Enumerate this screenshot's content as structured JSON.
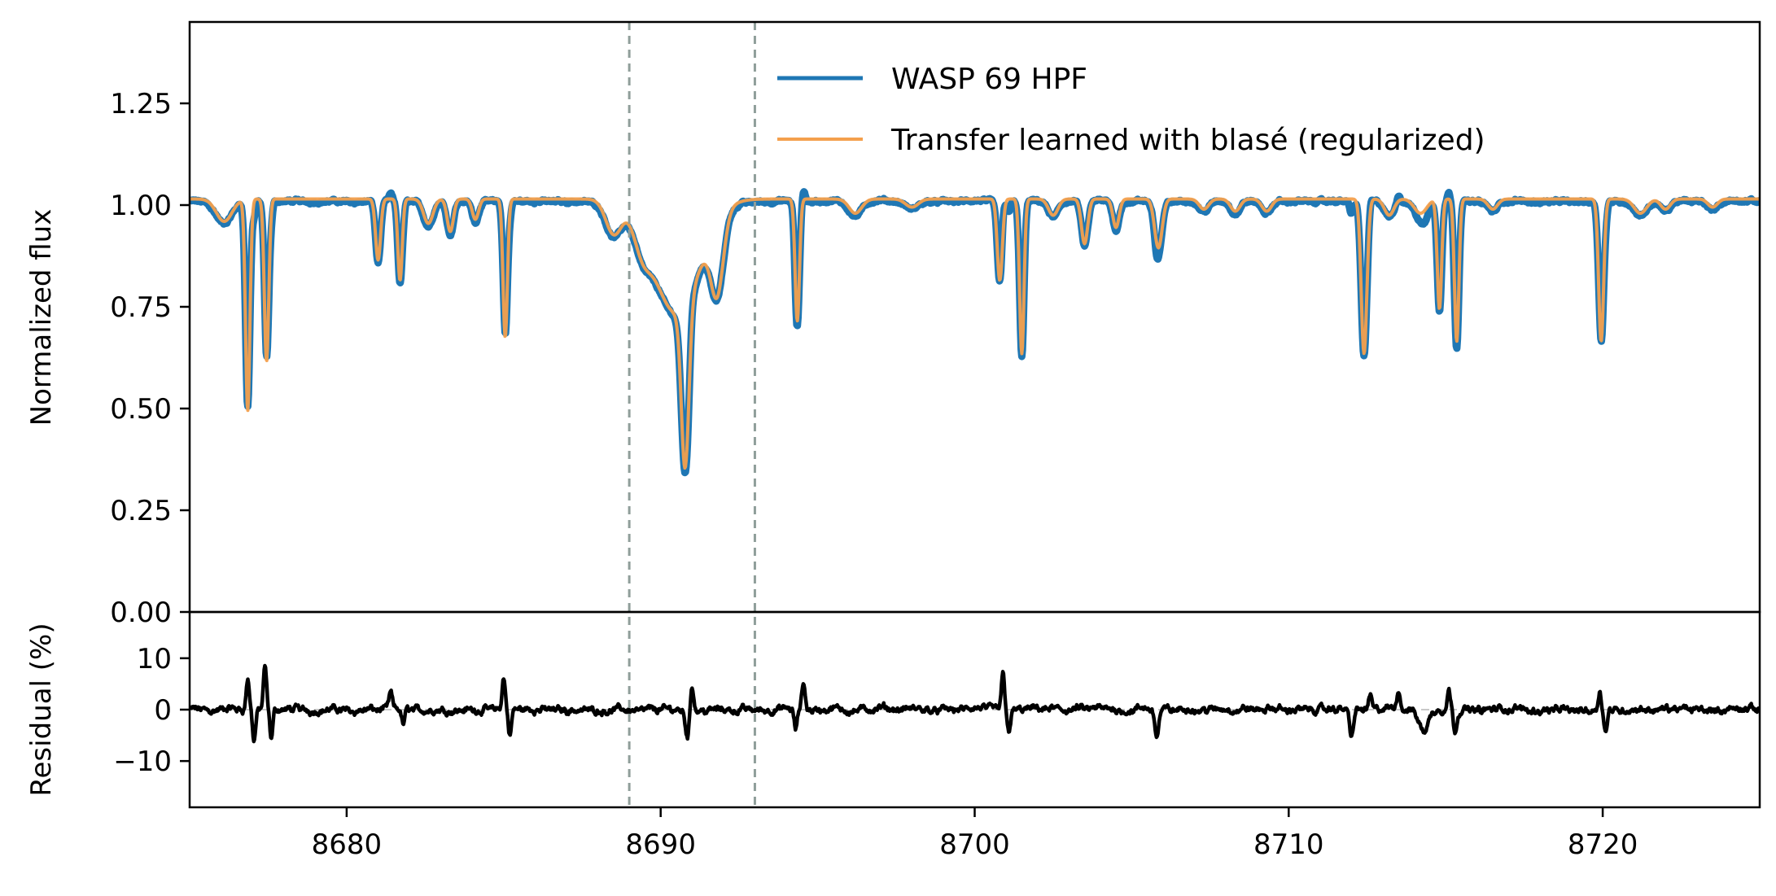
{
  "chart_data": {
    "type": "line",
    "xlim": [
      8675,
      8725
    ],
    "x_ticks": [
      "8680",
      "8690",
      "8700",
      "8710",
      "8720"
    ],
    "vertical_lines": [
      8689,
      8693
    ],
    "colors": {
      "observed": "#1f77b4",
      "model": "#f4a04d",
      "residual": "#000000",
      "zero_line": "#c8c8c8",
      "vertical_line": "#8f9e9a"
    },
    "panels": [
      {
        "id": "flux",
        "ylabel": "Normalized flux",
        "ylim": [
          0,
          1.45
        ],
        "y_ticks": [
          "0.00",
          "0.25",
          "0.50",
          "0.75",
          "1.00",
          "1.25"
        ],
        "legend_position": "top-right",
        "series": [
          {
            "name": "WASP 69 HPF",
            "role": "observed"
          },
          {
            "name": "Transfer learned with blasé (regularized)",
            "role": "model"
          }
        ],
        "continuum": 1.015,
        "absorption_lines": [
          {
            "center": 8676.1,
            "depth": 0.055,
            "width": 0.25
          },
          {
            "center": 8676.85,
            "depth": 0.52,
            "width": 0.07
          },
          {
            "center": 8677.45,
            "depth": 0.4,
            "width": 0.07
          },
          {
            "center": 8681.0,
            "depth": 0.15,
            "width": 0.08
          },
          {
            "center": 8681.7,
            "depth": 0.2,
            "width": 0.07
          },
          {
            "center": 8682.6,
            "depth": 0.06,
            "width": 0.15
          },
          {
            "center": 8683.3,
            "depth": 0.08,
            "width": 0.1
          },
          {
            "center": 8684.1,
            "depth": 0.05,
            "width": 0.1
          },
          {
            "center": 8685.05,
            "depth": 0.34,
            "width": 0.07
          },
          {
            "center": 8688.5,
            "depth": 0.08,
            "width": 0.25
          },
          {
            "center": 8689.4,
            "depth": 0.06,
            "width": 0.25
          },
          {
            "center": 8690.5,
            "depth": 0.28,
            "width": 0.75
          },
          {
            "center": 8690.78,
            "depth": 0.4,
            "width": 0.12
          },
          {
            "center": 8691.8,
            "depth": 0.18,
            "width": 0.2
          },
          {
            "center": 8694.35,
            "depth": 0.3,
            "width": 0.07
          },
          {
            "center": 8696.2,
            "depth": 0.035,
            "width": 0.2
          },
          {
            "center": 8698.0,
            "depth": 0.02,
            "width": 0.2
          },
          {
            "center": 8700.8,
            "depth": 0.2,
            "width": 0.08
          },
          {
            "center": 8701.5,
            "depth": 0.38,
            "width": 0.07
          },
          {
            "center": 8702.5,
            "depth": 0.04,
            "width": 0.15
          },
          {
            "center": 8703.5,
            "depth": 0.11,
            "width": 0.1
          },
          {
            "center": 8704.5,
            "depth": 0.07,
            "width": 0.1
          },
          {
            "center": 8705.85,
            "depth": 0.12,
            "width": 0.12
          },
          {
            "center": 8707.3,
            "depth": 0.025,
            "width": 0.15
          },
          {
            "center": 8708.3,
            "depth": 0.03,
            "width": 0.15
          },
          {
            "center": 8709.3,
            "depth": 0.03,
            "width": 0.15
          },
          {
            "center": 8712.4,
            "depth": 0.38,
            "width": 0.09
          },
          {
            "center": 8713.2,
            "depth": 0.04,
            "width": 0.15
          },
          {
            "center": 8714.2,
            "depth": 0.035,
            "width": 0.2
          },
          {
            "center": 8714.8,
            "depth": 0.27,
            "width": 0.07
          },
          {
            "center": 8715.35,
            "depth": 0.35,
            "width": 0.07
          },
          {
            "center": 8716.5,
            "depth": 0.025,
            "width": 0.15
          },
          {
            "center": 8719.95,
            "depth": 0.35,
            "width": 0.08
          },
          {
            "center": 8721.2,
            "depth": 0.035,
            "width": 0.2
          },
          {
            "center": 8722.0,
            "depth": 0.025,
            "width": 0.15
          },
          {
            "center": 8723.5,
            "depth": 0.02,
            "width": 0.15
          }
        ]
      },
      {
        "id": "residual",
        "ylabel": "Residual (%)",
        "ylim": [
          -19,
          19
        ],
        "y_ticks": [
          "−10",
          "0",
          "10"
        ],
        "zero_line": 0,
        "features": [
          {
            "center": 8676.85,
            "amplitude": 6,
            "width": 0.05
          },
          {
            "center": 8677.05,
            "amplitude": -6,
            "width": 0.05
          },
          {
            "center": 8677.4,
            "amplitude": 8,
            "width": 0.05
          },
          {
            "center": 8677.6,
            "amplitude": -6,
            "width": 0.05
          },
          {
            "center": 8681.4,
            "amplitude": 3,
            "width": 0.05
          },
          {
            "center": 8681.8,
            "amplitude": -3,
            "width": 0.05
          },
          {
            "center": 8685.0,
            "amplitude": 6,
            "width": 0.05
          },
          {
            "center": 8685.2,
            "amplitude": -5,
            "width": 0.05
          },
          {
            "center": 8690.85,
            "amplitude": -5,
            "width": 0.06
          },
          {
            "center": 8691.0,
            "amplitude": 5,
            "width": 0.05
          },
          {
            "center": 8694.3,
            "amplitude": -4,
            "width": 0.05
          },
          {
            "center": 8694.55,
            "amplitude": 5,
            "width": 0.05
          },
          {
            "center": 8700.9,
            "amplitude": 7,
            "width": 0.05
          },
          {
            "center": 8701.1,
            "amplitude": -4,
            "width": 0.05
          },
          {
            "center": 8705.8,
            "amplitude": -5,
            "width": 0.06
          },
          {
            "center": 8712.0,
            "amplitude": -5,
            "width": 0.06
          },
          {
            "center": 8712.6,
            "amplitude": 3,
            "width": 0.05
          },
          {
            "center": 8713.5,
            "amplitude": 4,
            "width": 0.05
          },
          {
            "center": 8714.3,
            "amplitude": -4,
            "width": 0.15
          },
          {
            "center": 8715.1,
            "amplitude": 4,
            "width": 0.05
          },
          {
            "center": 8715.3,
            "amplitude": -4,
            "width": 0.05
          },
          {
            "center": 8719.9,
            "amplitude": 4,
            "width": 0.05
          },
          {
            "center": 8720.1,
            "amplitude": -4,
            "width": 0.05
          }
        ]
      }
    ]
  }
}
